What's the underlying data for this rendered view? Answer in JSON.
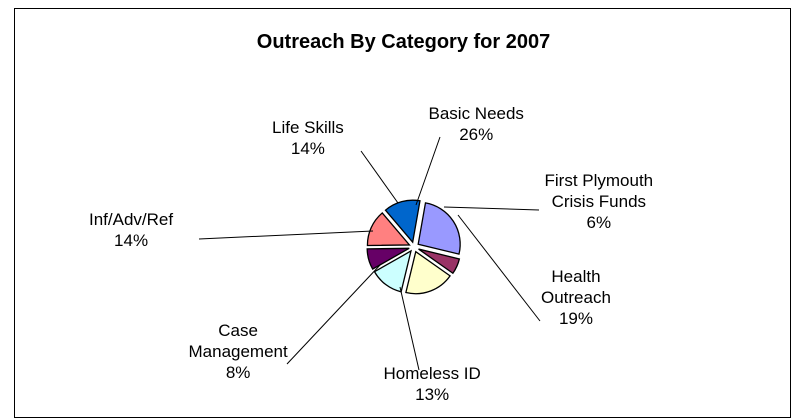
{
  "chart_data": {
    "type": "pie",
    "title": "Outreach By Category for 2007",
    "slices": [
      {
        "name": "Basic Needs",
        "percent": "26%",
        "value": 26,
        "color": "#9999ff"
      },
      {
        "name": "First Plymouth Crisis Funds",
        "percent": "6%",
        "value": 6,
        "color": "#993366"
      },
      {
        "name": "Health Outreach",
        "percent": "19%",
        "value": 19,
        "color": "#ffffcc"
      },
      {
        "name": "Homeless ID",
        "percent": "13%",
        "value": 13,
        "color": "#ccffff"
      },
      {
        "name": "Case Management",
        "percent": "8%",
        "value": 8,
        "color": "#660066"
      },
      {
        "name": "Inf/Adv/Ref",
        "percent": "14%",
        "value": 14,
        "color": "#ff8080"
      },
      {
        "name": "Life Skills",
        "percent": "14%",
        "value": 14,
        "color": "#0066cc"
      }
    ],
    "labels": [
      {
        "lines": [
          "Basic Needs"
        ],
        "percent": "26%"
      },
      {
        "lines": [
          "First Plymouth",
          "Crisis Funds"
        ],
        "percent": "6%"
      },
      {
        "lines": [
          "Health",
          "Outreach"
        ],
        "percent": "19%"
      },
      {
        "lines": [
          "Homeless ID"
        ],
        "percent": "13%"
      },
      {
        "lines": [
          "Case",
          "Management"
        ],
        "percent": "8%"
      },
      {
        "lines": [
          "Inf/Adv/Ref"
        ],
        "percent": "14%"
      },
      {
        "lines": [
          "Life Skills"
        ],
        "percent": "14%"
      }
    ],
    "legend": "none"
  }
}
